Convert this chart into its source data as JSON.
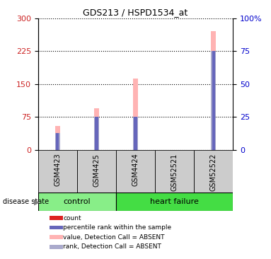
{
  "title": "GDS213 / HSPD1534_at",
  "samples": [
    "GSM4423",
    "GSM4425",
    "GSM4424",
    "GSM52521",
    "GSM52522"
  ],
  "ylim_left": [
    0,
    300
  ],
  "ylim_right": [
    0,
    100
  ],
  "yticks_left": [
    0,
    75,
    150,
    225,
    300
  ],
  "yticks_right": [
    0,
    25,
    50,
    75,
    100
  ],
  "pink_bar_values": [
    55,
    95,
    162,
    0,
    270
  ],
  "red_bar_values": [
    7,
    4,
    4,
    0,
    4
  ],
  "blue_bar_values_scaled": [
    13,
    25,
    25,
    0,
    75
  ],
  "colors": {
    "pink": "#ffb3b3",
    "red": "#dd2222",
    "blue": "#6666bb",
    "lightblue": "#aaaacc",
    "gray_bg": "#cccccc",
    "control_green": "#88ee88",
    "failure_green": "#44dd44",
    "white": "#ffffff"
  },
  "legend_items": [
    {
      "label": "count",
      "color": "#dd2222"
    },
    {
      "label": "percentile rank within the sample",
      "color": "#6666bb"
    },
    {
      "label": "value, Detection Call = ABSENT",
      "color": "#ffb3b3"
    },
    {
      "label": "rank, Detection Call = ABSENT",
      "color": "#aaaacc"
    }
  ],
  "tick_label_color_left": "#cc2222",
  "tick_label_color_right": "#0000cc"
}
